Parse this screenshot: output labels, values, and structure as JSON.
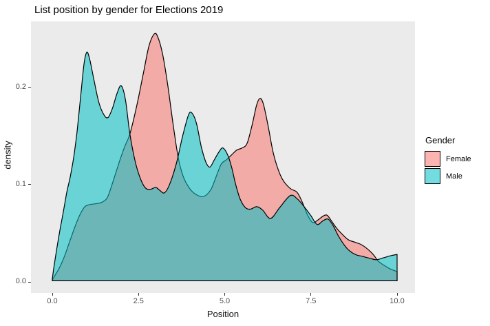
{
  "chart_data": {
    "type": "area",
    "subtype": "density",
    "title": "List position by gender for Elections 2019",
    "xlabel": "Position",
    "ylabel": "density",
    "xlim": [
      0,
      10
    ],
    "ylim": [
      0,
      0.26
    ],
    "grid": false,
    "panel_bg": "#EBEBEB",
    "fill_alpha": 0.55,
    "outline_color": "#000000",
    "x_ticks": [
      {
        "value": 0.0,
        "label": "0.0"
      },
      {
        "value": 2.5,
        "label": "2.5"
      },
      {
        "value": 5.0,
        "label": "5.0"
      },
      {
        "value": 7.5,
        "label": "7.5"
      },
      {
        "value": 10.0,
        "label": "10.0"
      }
    ],
    "y_ticks": [
      {
        "value": 0.0,
        "label": "0.0"
      },
      {
        "value": 0.1,
        "label": "0.1"
      },
      {
        "value": 0.2,
        "label": "0.2"
      }
    ],
    "legend": {
      "title": "Gender",
      "position": "right",
      "entries": [
        {
          "label": "Female",
          "color": "#F8766D"
        },
        {
          "label": "Male",
          "color": "#00BFC4"
        }
      ]
    },
    "series": [
      {
        "name": "Female",
        "color": "#F8766D",
        "points": [
          [
            0,
            0.002
          ],
          [
            0.1,
            0.008
          ],
          [
            0.2,
            0.014
          ],
          [
            0.35,
            0.026
          ],
          [
            0.5,
            0.041
          ],
          [
            0.65,
            0.056
          ],
          [
            0.8,
            0.069
          ],
          [
            0.95,
            0.0775
          ],
          [
            1.1,
            0.0795
          ],
          [
            1.3,
            0.0805
          ],
          [
            1.45,
            0.082
          ],
          [
            1.6,
            0.087
          ],
          [
            1.75,
            0.102
          ],
          [
            1.95,
            0.124
          ],
          [
            2.1,
            0.139
          ],
          [
            2.25,
            0.152
          ],
          [
            2.45,
            0.181
          ],
          [
            2.65,
            0.216
          ],
          [
            2.8,
            0.242
          ],
          [
            2.95,
            0.2545
          ],
          [
            3.05,
            0.2525
          ],
          [
            3.2,
            0.234
          ],
          [
            3.35,
            0.202
          ],
          [
            3.5,
            0.163
          ],
          [
            3.65,
            0.128
          ],
          [
            3.8,
            0.108
          ],
          [
            4.0,
            0.0952
          ],
          [
            4.2,
            0.0892
          ],
          [
            4.4,
            0.0878
          ],
          [
            4.6,
            0.095
          ],
          [
            4.75,
            0.108
          ],
          [
            4.9,
            0.121
          ],
          [
            5.05,
            0.1255
          ],
          [
            5.2,
            0.1305
          ],
          [
            5.35,
            0.1355
          ],
          [
            5.5,
            0.1375
          ],
          [
            5.65,
            0.1425
          ],
          [
            5.8,
            0.162
          ],
          [
            5.92,
            0.181
          ],
          [
            6.02,
            0.1885
          ],
          [
            6.12,
            0.183
          ],
          [
            6.25,
            0.162
          ],
          [
            6.4,
            0.134
          ],
          [
            6.55,
            0.1155
          ],
          [
            6.7,
            0.104
          ],
          [
            6.9,
            0.096
          ],
          [
            7.1,
            0.092
          ],
          [
            7.25,
            0.082
          ],
          [
            7.4,
            0.069
          ],
          [
            7.55,
            0.061
          ],
          [
            7.7,
            0.0635
          ],
          [
            7.85,
            0.0675
          ],
          [
            7.97,
            0.0685
          ],
          [
            8.1,
            0.0625
          ],
          [
            8.25,
            0.055
          ],
          [
            8.45,
            0.0475
          ],
          [
            8.6,
            0.043
          ],
          [
            8.8,
            0.0405
          ],
          [
            8.95,
            0.0385
          ],
          [
            9.1,
            0.035
          ],
          [
            9.3,
            0.0285
          ],
          [
            9.45,
            0.0215
          ],
          [
            9.6,
            0.0175
          ],
          [
            9.8,
            0.0133
          ],
          [
            10,
            0.0106
          ]
        ]
      },
      {
        "name": "Male",
        "color": "#00BFC4",
        "points": [
          [
            0,
            0.003
          ],
          [
            0.05,
            0.016
          ],
          [
            0.12,
            0.032
          ],
          [
            0.22,
            0.053
          ],
          [
            0.32,
            0.072
          ],
          [
            0.42,
            0.092
          ],
          [
            0.52,
            0.108
          ],
          [
            0.62,
            0.128
          ],
          [
            0.72,
            0.155
          ],
          [
            0.82,
            0.19
          ],
          [
            0.92,
            0.224
          ],
          [
            1.0,
            0.236
          ],
          [
            1.08,
            0.2295
          ],
          [
            1.2,
            0.209
          ],
          [
            1.35,
            0.1845
          ],
          [
            1.5,
            0.1715
          ],
          [
            1.62,
            0.169
          ],
          [
            1.75,
            0.179
          ],
          [
            1.88,
            0.194
          ],
          [
            2.0,
            0.2015
          ],
          [
            2.12,
            0.1875
          ],
          [
            2.25,
            0.152
          ],
          [
            2.4,
            0.1245
          ],
          [
            2.55,
            0.1065
          ],
          [
            2.7,
            0.0965
          ],
          [
            2.85,
            0.0952
          ],
          [
            3.0,
            0.097
          ],
          [
            3.12,
            0.094
          ],
          [
            3.25,
            0.0915
          ],
          [
            3.4,
            0.1
          ],
          [
            3.6,
            0.122
          ],
          [
            3.78,
            0.15
          ],
          [
            3.95,
            0.1715
          ],
          [
            4.05,
            0.1735
          ],
          [
            4.18,
            0.163
          ],
          [
            4.32,
            0.139
          ],
          [
            4.45,
            0.1235
          ],
          [
            4.57,
            0.118
          ],
          [
            4.7,
            0.1255
          ],
          [
            4.85,
            0.1345
          ],
          [
            4.95,
            0.1376
          ],
          [
            5.08,
            0.131
          ],
          [
            5.2,
            0.118
          ],
          [
            5.32,
            0.1
          ],
          [
            5.45,
            0.085
          ],
          [
            5.6,
            0.0763
          ],
          [
            5.75,
            0.0748
          ],
          [
            5.93,
            0.0773
          ],
          [
            6.1,
            0.0738
          ],
          [
            6.33,
            0.0652
          ],
          [
            6.6,
            0.0766
          ],
          [
            6.9,
            0.0887
          ],
          [
            7.1,
            0.0855
          ],
          [
            7.3,
            0.0775
          ],
          [
            7.5,
            0.068
          ],
          [
            7.68,
            0.059
          ],
          [
            7.85,
            0.0628
          ],
          [
            8.0,
            0.0645
          ],
          [
            8.15,
            0.0575
          ],
          [
            8.3,
            0.047
          ],
          [
            8.45,
            0.0388
          ],
          [
            8.6,
            0.0325
          ],
          [
            8.8,
            0.028
          ],
          [
            9.0,
            0.0262
          ],
          [
            9.2,
            0.0243
          ],
          [
            9.4,
            0.0228
          ],
          [
            9.6,
            0.0247
          ],
          [
            9.8,
            0.0268
          ],
          [
            10,
            0.0282
          ]
        ]
      }
    ]
  }
}
